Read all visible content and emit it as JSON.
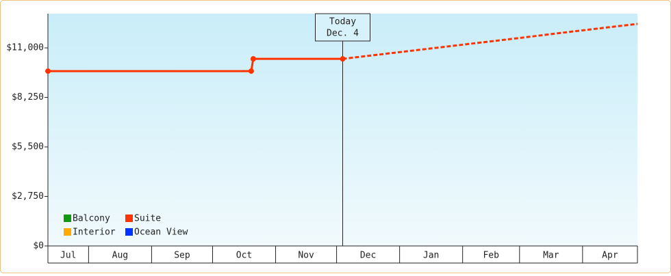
{
  "chart_data": {
    "type": "line",
    "ylim": [
      0,
      12900
    ],
    "yticks": [
      {
        "value": 0,
        "label": "$0"
      },
      {
        "value": 2750,
        "label": "$2,750"
      },
      {
        "value": 5500,
        "label": "$5,500"
      },
      {
        "value": 8250,
        "label": "$8,250"
      },
      {
        "value": 11000,
        "label": "$11,000"
      }
    ],
    "xlim": [
      0,
      290
    ],
    "categories": [
      "Jul",
      "Aug",
      "Sep",
      "Oct",
      "Nov",
      "Dec",
      "Jan",
      "Feb",
      "Mar",
      "Apr"
    ],
    "category_edges": [
      0,
      20,
      51,
      81,
      112,
      142,
      173,
      204,
      232,
      263,
      290
    ],
    "today": {
      "x": 145,
      "label_lines": [
        "Today",
        "Dec. 4"
      ]
    },
    "series": [
      {
        "name": "Balcony",
        "color": "#119911",
        "x": [],
        "values": []
      },
      {
        "name": "Suite",
        "color": "#ff3300",
        "x": [
          0,
          100,
          101,
          145
        ],
        "values": [
          9710,
          9710,
          10390,
          10390
        ],
        "forecast": {
          "x": [
            145,
            160,
            175,
            190,
            205,
            220,
            235,
            250,
            265,
            280,
            290
          ],
          "values": [
            10390,
            10590,
            10790,
            10990,
            11190,
            11390,
            11590,
            11800,
            12000,
            12200,
            12330
          ]
        }
      },
      {
        "name": "Interior",
        "color": "#ffaa00",
        "x": [],
        "values": []
      },
      {
        "name": "Ocean View",
        "color": "#0033ff",
        "x": [],
        "values": []
      }
    ]
  }
}
